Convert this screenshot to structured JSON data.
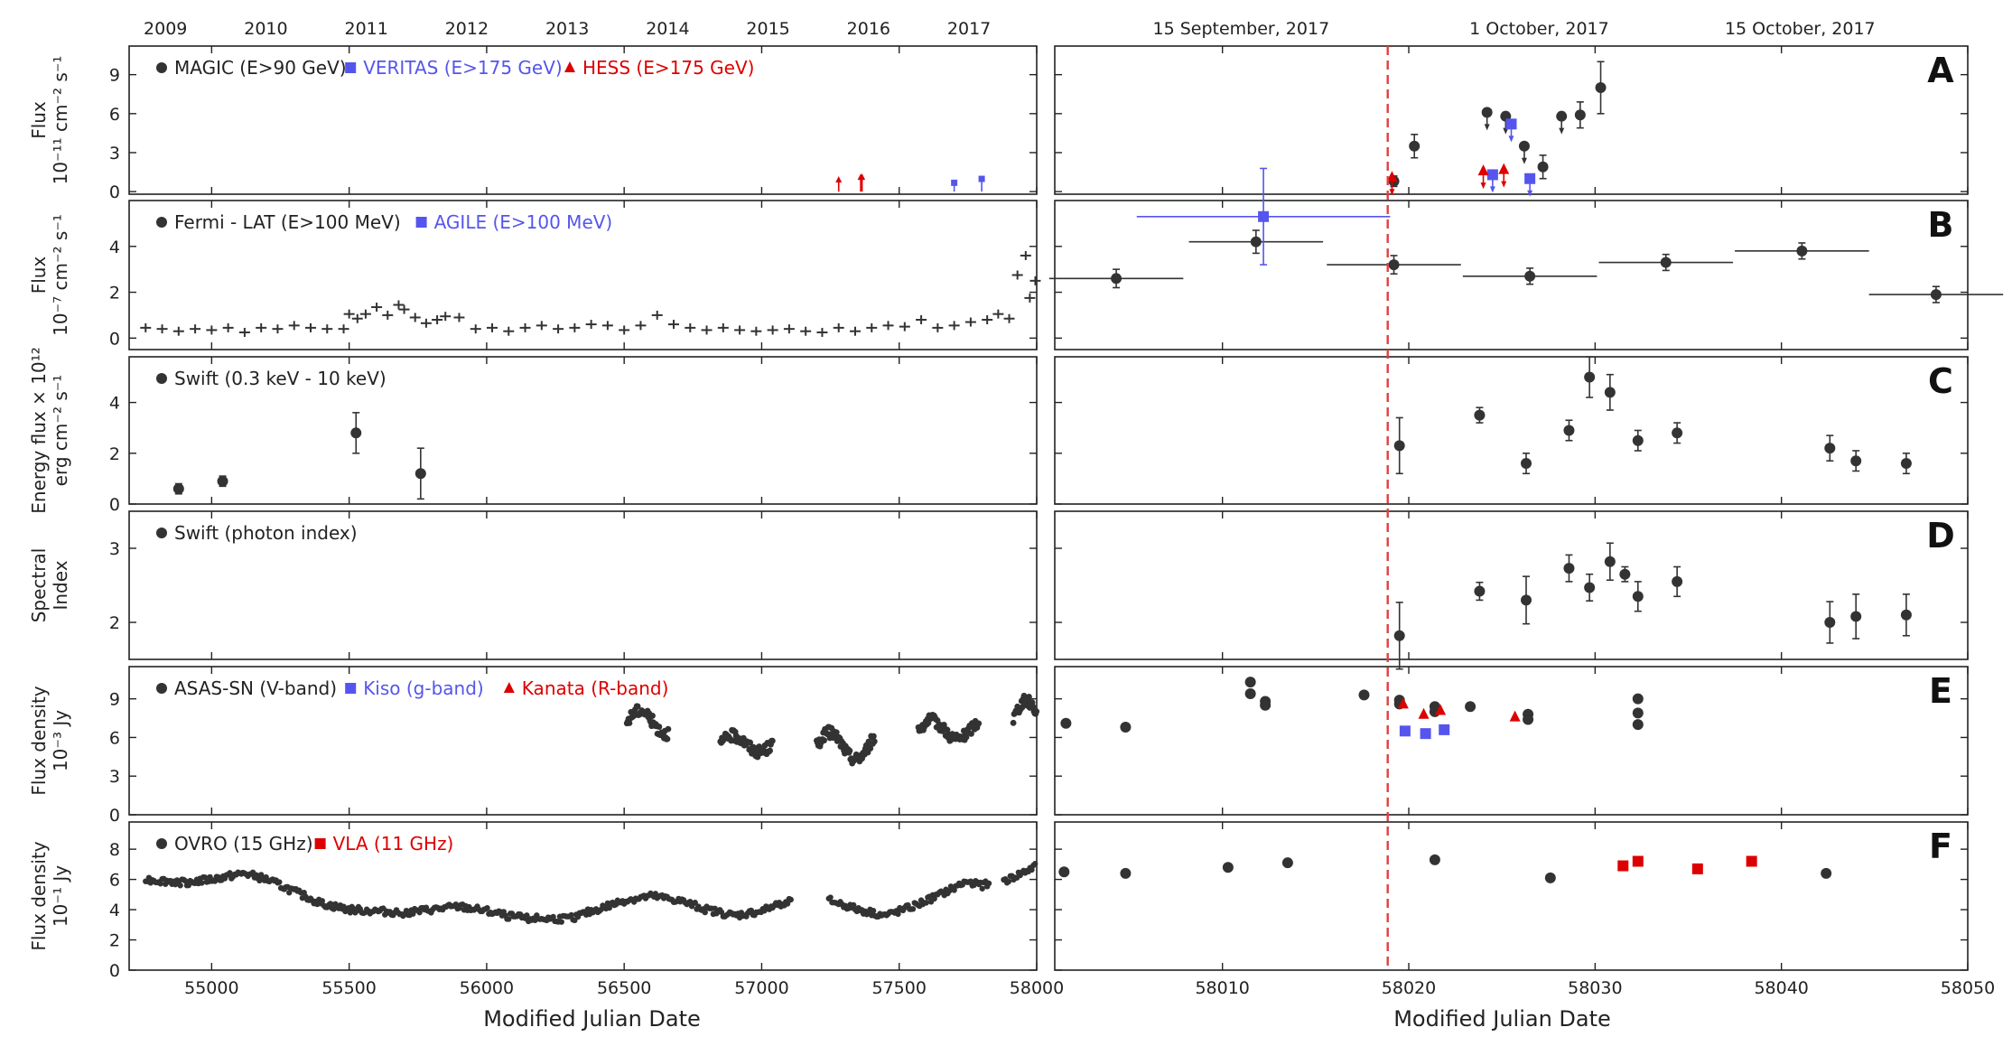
{
  "colors": {
    "black": "#333333",
    "blue": "#5555ee",
    "red": "#dd0000",
    "vline": "#e04040"
  },
  "left_xaxis": {
    "label": "Modified Julian Date",
    "ticks": [
      "55000",
      "55500",
      "56000",
      "56500",
      "57000",
      "57500",
      "58000"
    ]
  },
  "right_xaxis": {
    "label": "Modified Julian Date",
    "ticks": [
      "58010",
      "58020",
      "58030",
      "58040",
      "58050"
    ]
  },
  "top_years": [
    "2009",
    "2010",
    "2011",
    "2012",
    "2013",
    "2014",
    "2015",
    "2016",
    "2017"
  ],
  "top_dates": [
    "15 September, 2017",
    "1 October, 2017",
    "15 October, 2017"
  ],
  "panels": {
    "A": {
      "letter": "A",
      "ylabel": [
        "Flux",
        "10⁻¹¹ cm⁻² s⁻¹"
      ],
      "yticks": [
        "0",
        "3",
        "6",
        "9"
      ],
      "legend": [
        {
          "marker": "circle",
          "color": "#333333",
          "text": "MAGIC (E>90 GeV)"
        },
        {
          "marker": "square",
          "color": "#5555ee",
          "text": "VERITAS (E>175 GeV)"
        },
        {
          "marker": "triangle",
          "color": "#dd0000",
          "text": "HESS (E>175 GeV)"
        }
      ]
    },
    "B": {
      "letter": "B",
      "ylabel": [
        "Flux",
        "10⁻⁷ cm⁻² s⁻¹"
      ],
      "yticks": [
        "0",
        "2",
        "4"
      ],
      "legend": [
        {
          "marker": "circle",
          "color": "#333333",
          "text": "Fermi - LAT (E>100 MeV)"
        },
        {
          "marker": "square",
          "color": "#5555ee",
          "text": "AGILE (E>100 MeV)"
        }
      ]
    },
    "C": {
      "letter": "C",
      "ylabel": [
        "Energy flux × 10¹²",
        "erg cm⁻² s⁻¹"
      ],
      "yticks": [
        "0",
        "2",
        "4"
      ],
      "legend": [
        {
          "marker": "circle",
          "color": "#333333",
          "text": "Swift (0.3 keV - 10 keV)"
        }
      ]
    },
    "D": {
      "letter": "D",
      "ylabel": [
        "Spectral",
        "Index"
      ],
      "yticks": [
        "2",
        "3"
      ],
      "legend": [
        {
          "marker": "circle",
          "color": "#333333",
          "text": "Swift (photon index)"
        }
      ]
    },
    "E": {
      "letter": "E",
      "ylabel": [
        "Flux density",
        "10⁻³ Jy"
      ],
      "yticks": [
        "0",
        "3",
        "6",
        "9"
      ],
      "legend": [
        {
          "marker": "circle",
          "color": "#333333",
          "text": "ASAS-SN (V-band)"
        },
        {
          "marker": "square",
          "color": "#5555ee",
          "text": "Kiso (g-band)"
        },
        {
          "marker": "triangle",
          "color": "#dd0000",
          "text": "Kanata (R-band)"
        }
      ]
    },
    "F": {
      "letter": "F",
      "ylabel": [
        "Flux density",
        "10⁻¹ Jy"
      ],
      "yticks": [
        "0",
        "2",
        "4",
        "6",
        "8"
      ],
      "legend": [
        {
          "marker": "circle",
          "color": "#333333",
          "text": "OVRO (15 GHz)"
        },
        {
          "marker": "square",
          "color": "#dd0000",
          "text": "VLA (11 GHz)"
        }
      ]
    }
  },
  "chart_data": {
    "type": "scatter",
    "vertical_line_mjd": 58018.87,
    "left_xlim": [
      54700,
      58000
    ],
    "right_xlim": [
      58001,
      58050
    ],
    "series": [
      {
        "panel": "A",
        "side": "left",
        "name": "HESS (E>175 GeV)",
        "color": "#dd0000",
        "marker": "triangle",
        "points": [
          [
            57280,
            0.6,
            0.4
          ],
          [
            57360,
            0.8,
            0.5
          ],
          [
            57365,
            0.8,
            0.5
          ]
        ]
      },
      {
        "panel": "A",
        "side": "left",
        "name": "VERITAS (E>175 GeV)",
        "color": "#5555ee",
        "marker": "square",
        "points": [
          [
            57700,
            0.4,
            0.3
          ],
          [
            57800,
            0.7,
            0.4
          ]
        ]
      },
      {
        "panel": "A",
        "side": "right",
        "name": "MAGIC (E>90 GeV)",
        "color": "#333333",
        "marker": "circle",
        "points": [
          [
            58019.2,
            0.8,
            0.4
          ],
          [
            58020.3,
            3.5,
            0.9
          ],
          [
            58024.2,
            6.1,
            0
          ],
          [
            58025.2,
            5.8,
            0
          ],
          [
            58026.2,
            3.5,
            0
          ],
          [
            58027.2,
            1.9,
            0.9
          ],
          [
            58028.2,
            5.8,
            0
          ],
          [
            58029.2,
            5.9,
            1.0
          ],
          [
            58030.3,
            8.0,
            2.0
          ]
        ]
      },
      {
        "panel": "A",
        "side": "right",
        "name": "VERITAS (E>175 GeV)",
        "color": "#5555ee",
        "marker": "square",
        "points": [
          [
            58024.5,
            1.3,
            0
          ],
          [
            58025.5,
            5.2,
            0
          ],
          [
            58026.5,
            1.0,
            0
          ]
        ]
      },
      {
        "panel": "A",
        "side": "right",
        "name": "HESS (E>175 GeV)",
        "color": "#dd0000",
        "marker": "triangle",
        "points": [
          [
            58019.1,
            1.1,
            0
          ],
          [
            58024.0,
            1.6,
            0
          ],
          [
            58025.1,
            1.7,
            0
          ]
        ]
      },
      {
        "panel": "B",
        "side": "right",
        "name": "Fermi-LAT (E>100 MeV)",
        "color": "#333333",
        "marker": "circle",
        "points": [
          [
            58004.3,
            2.6,
            0.4
          ],
          [
            58011.8,
            4.2,
            0.5
          ],
          [
            58019.2,
            3.2,
            0.4
          ],
          [
            58026.5,
            2.7,
            0.35
          ],
          [
            58033.8,
            3.3,
            0.35
          ],
          [
            58041.1,
            3.8,
            0.35
          ],
          [
            58048.3,
            1.9,
            0.35
          ]
        ],
        "xerr": [
          3.6,
          3.6,
          3.6,
          3.6,
          3.6,
          3.6,
          3.6
        ]
      },
      {
        "panel": "B",
        "side": "right",
        "name": "AGILE (E>100 MeV)",
        "color": "#5555ee",
        "marker": "square",
        "points": [
          [
            58012.2,
            5.3,
            2.1
          ]
        ],
        "xerr": [
          6.8
        ]
      },
      {
        "panel": "B",
        "side": "left",
        "name": "Fermi-LAT (E>100 MeV)",
        "color": "#333333",
        "marker": "plus",
        "points": [
          [
            54760,
            0.45
          ],
          [
            54820,
            0.4
          ],
          [
            54880,
            0.3
          ],
          [
            54940,
            0.4
          ],
          [
            55000,
            0.35
          ],
          [
            55060,
            0.45
          ],
          [
            55120,
            0.25
          ],
          [
            55180,
            0.45
          ],
          [
            55240,
            0.4
          ],
          [
            55300,
            0.55
          ],
          [
            55360,
            0.45
          ],
          [
            55420,
            0.4
          ],
          [
            55480,
            0.4
          ],
          [
            55500,
            1.05
          ],
          [
            55530,
            0.85
          ],
          [
            55560,
            1.05
          ],
          [
            55600,
            1.35
          ],
          [
            55640,
            1.0
          ],
          [
            55680,
            1.45
          ],
          [
            55700,
            1.25
          ],
          [
            55740,
            0.9
          ],
          [
            55780,
            0.65
          ],
          [
            55820,
            0.8
          ],
          [
            55850,
            0.95
          ],
          [
            55900,
            0.9
          ],
          [
            55960,
            0.4
          ],
          [
            56020,
            0.45
          ],
          [
            56080,
            0.3
          ],
          [
            56140,
            0.45
          ],
          [
            56200,
            0.55
          ],
          [
            56260,
            0.4
          ],
          [
            56320,
            0.45
          ],
          [
            56380,
            0.6
          ],
          [
            56440,
            0.55
          ],
          [
            56500,
            0.35
          ],
          [
            56560,
            0.55
          ],
          [
            56620,
            1.0
          ],
          [
            56680,
            0.6
          ],
          [
            56740,
            0.45
          ],
          [
            56800,
            0.35
          ],
          [
            56860,
            0.45
          ],
          [
            56920,
            0.35
          ],
          [
            56980,
            0.3
          ],
          [
            57040,
            0.35
          ],
          [
            57100,
            0.4
          ],
          [
            57160,
            0.3
          ],
          [
            57220,
            0.25
          ],
          [
            57280,
            0.45
          ],
          [
            57340,
            0.3
          ],
          [
            57400,
            0.45
          ],
          [
            57460,
            0.55
          ],
          [
            57520,
            0.5
          ],
          [
            57580,
            0.8
          ],
          [
            57640,
            0.45
          ],
          [
            57700,
            0.55
          ],
          [
            57760,
            0.7
          ],
          [
            57820,
            0.8
          ],
          [
            57860,
            1.05
          ],
          [
            57900,
            0.85
          ],
          [
            57930,
            2.75
          ],
          [
            57960,
            3.6
          ],
          [
            57975,
            1.75
          ],
          [
            57995,
            2.5
          ]
        ]
      },
      {
        "panel": "C",
        "side": "left",
        "name": "Swift (0.3 keV - 10 keV)",
        "color": "#333333",
        "marker": "circle",
        "points": [
          [
            54880,
            0.6,
            0.2
          ],
          [
            55040,
            0.9,
            0.2
          ],
          [
            55525,
            2.8,
            0.8
          ],
          [
            55760,
            1.2,
            1.0
          ]
        ]
      },
      {
        "panel": "C",
        "side": "right",
        "name": "Swift (0.3 keV - 10 keV)",
        "color": "#333333",
        "marker": "circle",
        "points": [
          [
            58019.5,
            2.3,
            1.1
          ],
          [
            58023.8,
            3.5,
            0.3
          ],
          [
            58026.3,
            1.6,
            0.4
          ],
          [
            58028.6,
            2.9,
            0.4
          ],
          [
            58029.7,
            5.0,
            0.8
          ],
          [
            58030.8,
            4.4,
            0.7
          ],
          [
            58032.3,
            2.5,
            0.4
          ],
          [
            58034.4,
            2.8,
            0.4
          ],
          [
            58042.6,
            2.2,
            0.5
          ],
          [
            58044.0,
            1.7,
            0.4
          ],
          [
            58046.7,
            1.6,
            0.4
          ]
        ]
      },
      {
        "panel": "D",
        "side": "right",
        "name": "Swift (photon index)",
        "color": "#333333",
        "marker": "circle",
        "points": [
          [
            58019.5,
            1.82,
            0.45
          ],
          [
            58023.8,
            2.42,
            0.12
          ],
          [
            58026.3,
            2.3,
            0.32
          ],
          [
            58028.6,
            2.73,
            0.18
          ],
          [
            58029.7,
            2.47,
            0.18
          ],
          [
            58030.8,
            2.82,
            0.25
          ],
          [
            58031.6,
            2.65,
            0.1
          ],
          [
            58032.3,
            2.35,
            0.2
          ],
          [
            58034.4,
            2.55,
            0.2
          ],
          [
            58042.6,
            2.0,
            0.28
          ],
          [
            58044.0,
            2.08,
            0.3
          ],
          [
            58046.7,
            2.1,
            0.28
          ]
        ]
      },
      {
        "panel": "E",
        "side": "right",
        "name": "ASAS-SN (V-band)",
        "color": "#333333",
        "marker": "circle",
        "points": [
          [
            58001.6,
            7.1
          ],
          [
            58004.8,
            6.8
          ],
          [
            58011.5,
            10.3
          ],
          [
            58011.5,
            9.4
          ],
          [
            58012.3,
            8.8
          ],
          [
            58012.3,
            8.5
          ],
          [
            58017.6,
            9.3
          ],
          [
            58019.5,
            8.9
          ],
          [
            58019.5,
            8.6
          ],
          [
            58021.4,
            8.4
          ],
          [
            58021.4,
            8.0
          ],
          [
            58023.3,
            8.4
          ],
          [
            58026.4,
            7.8
          ],
          [
            58026.4,
            7.4
          ],
          [
            58032.3,
            9.0
          ],
          [
            58032.3,
            7.9
          ],
          [
            58032.3,
            7.0
          ]
        ]
      },
      {
        "panel": "E",
        "side": "right",
        "name": "Kiso (g-band)",
        "color": "#5555ee",
        "marker": "square",
        "points": [
          [
            58019.8,
            6.5
          ],
          [
            58020.9,
            6.3
          ],
          [
            58021.9,
            6.6
          ]
        ]
      },
      {
        "panel": "E",
        "side": "right",
        "name": "Kanata (R-band)",
        "color": "#dd0000",
        "marker": "triangle",
        "points": [
          [
            58019.7,
            8.6
          ],
          [
            58020.8,
            7.8
          ],
          [
            58021.7,
            8.1
          ],
          [
            58025.7,
            7.6
          ]
        ]
      },
      {
        "panel": "F",
        "side": "right",
        "name": "OVRO (15 GHz)",
        "color": "#333333",
        "marker": "circle",
        "points": [
          [
            58001.5,
            6.5
          ],
          [
            58004.8,
            6.4
          ],
          [
            58010.3,
            6.8
          ],
          [
            58013.5,
            7.1
          ],
          [
            58021.4,
            7.3
          ],
          [
            58027.6,
            6.1
          ],
          [
            58042.4,
            6.4
          ]
        ]
      },
      {
        "panel": "F",
        "side": "right",
        "name": "VLA (11 GHz)",
        "color": "#dd0000",
        "marker": "square",
        "points": [
          [
            58031.5,
            6.9
          ],
          [
            58032.3,
            7.2
          ],
          [
            58035.5,
            6.7
          ],
          [
            58038.4,
            7.2
          ]
        ]
      }
    ],
    "left_dense_series": [
      {
        "panel": "E",
        "name": "ASAS-SN (V-band)",
        "color": "#333333",
        "segments": [
          [
            56510,
            56660,
            6.2,
            8.2
          ],
          [
            56850,
            57040,
            4.8,
            6.2
          ],
          [
            57200,
            57410,
            4.2,
            6.5
          ],
          [
            57570,
            57790,
            5.8,
            7.4
          ],
          [
            57915,
            58000,
            5.9,
            9.0
          ]
        ]
      },
      {
        "panel": "F",
        "name": "OVRO (15 GHz)",
        "color": "#333333",
        "profile": [
          [
            54760,
            6.0
          ],
          [
            54900,
            5.8
          ],
          [
            55000,
            6.0
          ],
          [
            55120,
            6.4
          ],
          [
            55200,
            6.0
          ],
          [
            55300,
            5.2
          ],
          [
            55400,
            4.4
          ],
          [
            55500,
            4.0
          ],
          [
            55600,
            3.9
          ],
          [
            55700,
            3.8
          ],
          [
            55800,
            4.0
          ],
          [
            55900,
            4.2
          ],
          [
            56000,
            3.9
          ],
          [
            56100,
            3.5
          ],
          [
            56200,
            3.4
          ],
          [
            56300,
            3.4
          ],
          [
            56400,
            4.0
          ],
          [
            56500,
            4.6
          ],
          [
            56600,
            4.9
          ],
          [
            56700,
            4.6
          ],
          [
            56800,
            4.0
          ],
          [
            56900,
            3.6
          ],
          [
            57000,
            3.9
          ],
          [
            57080,
            4.5
          ],
          [
            57250,
            4.6
          ],
          [
            57350,
            4.0
          ],
          [
            57450,
            3.6
          ],
          [
            57550,
            4.2
          ],
          [
            57650,
            5.0
          ],
          [
            57750,
            5.9
          ],
          [
            57800,
            5.6
          ],
          [
            57900,
            6.0
          ],
          [
            58000,
            6.9
          ]
        ],
        "gaps": [
          [
            57110,
            57240
          ],
          [
            57830,
            57880
          ]
        ]
      }
    ]
  }
}
